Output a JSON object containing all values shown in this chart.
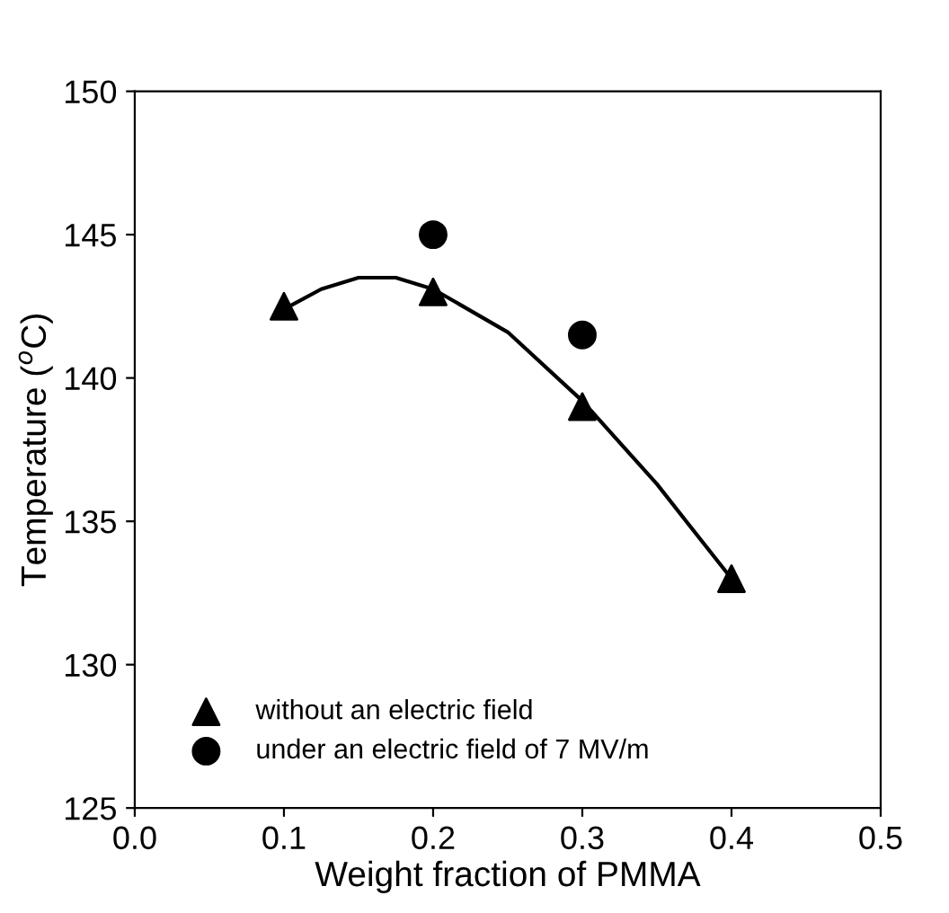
{
  "chart_data": {
    "type": "scatter",
    "xlabel": "Weight fraction of PMMA",
    "ylabel": "Temperature ($^{o}$C)",
    "xlim": [
      0.0,
      0.5
    ],
    "ylim": [
      125,
      150
    ],
    "xticks": [
      {
        "value": 0.0,
        "label": "0.0"
      },
      0.1,
      0.2,
      0.3,
      0.4,
      0.5
    ],
    "yticks": [
      125,
      130,
      135,
      140,
      145,
      150
    ],
    "grid": false,
    "legend": "bottom left",
    "series": [
      {
        "name": "without an electric field",
        "color": "#000000",
        "marker": "triangle",
        "x": [
          0.1,
          0.2,
          0.3,
          0.4
        ],
        "values": [
          142.5,
          143,
          139,
          133
        ]
      },
      {
        "name": "under an electric field of 7 MV/m",
        "color": "#000000",
        "marker": "circle",
        "x": [
          0.2,
          0.3
        ],
        "values": [
          145,
          141.5
        ]
      },
      {
        "type": "line",
        "color": "#000000",
        "marker": "none",
        "line_style": "solid",
        "x": [
          0.1,
          0.125,
          0.15,
          0.175,
          0.2,
          0.25,
          0.3,
          0.35,
          0.4
        ],
        "values": [
          142.4,
          143.1,
          143.5,
          143.5,
          143.1,
          141.6,
          139.2,
          136.3,
          133.0
        ]
      }
    ]
  }
}
